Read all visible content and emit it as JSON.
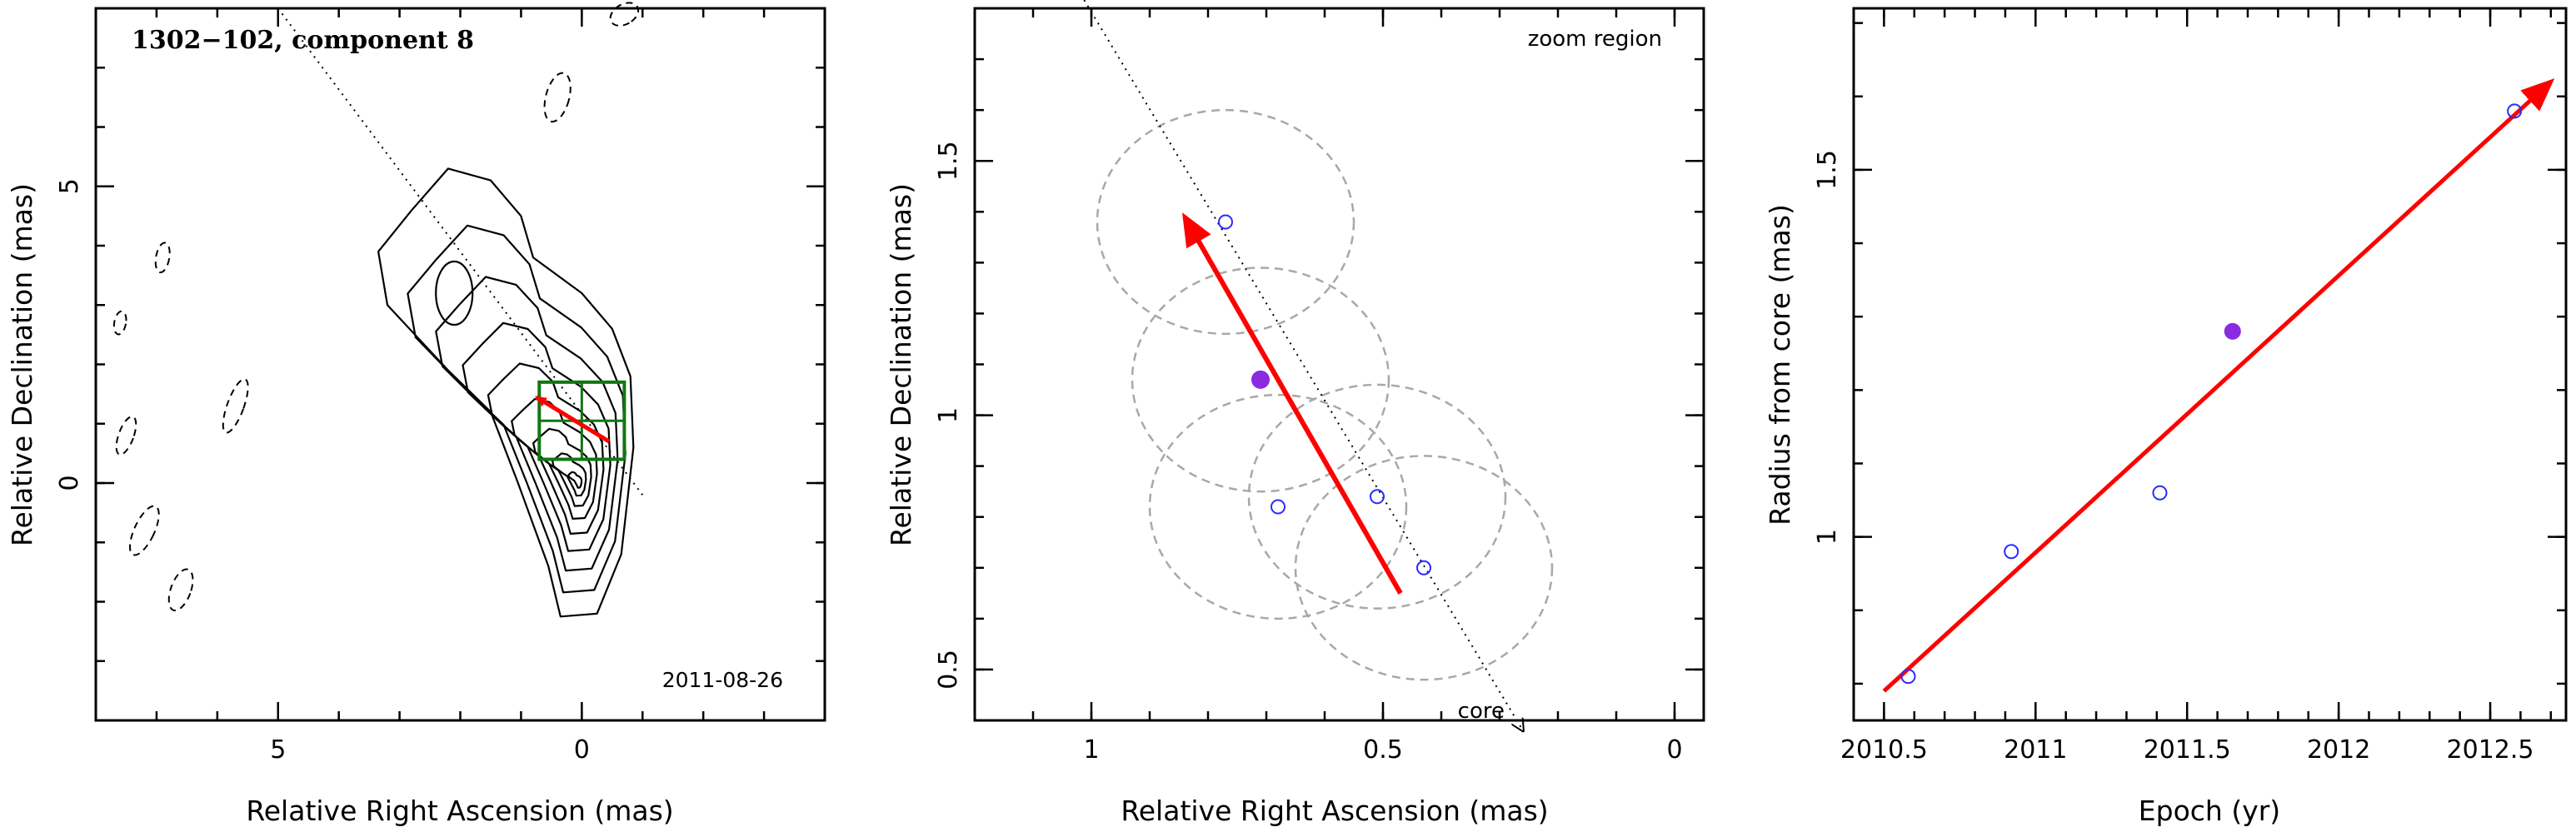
{
  "colors": {
    "velocity_arrow": "#ff0000",
    "open_markers": "#2a2aff",
    "filled_marker": "#8a2be2",
    "contours": "#000000",
    "zoom_box": "#117711",
    "uncertainty_circles": "#a8a8a8"
  },
  "chart_data": [
    {
      "type": "contour",
      "title": "1302−102, component 8",
      "xlabel": "Relative Right Ascension (mas)",
      "ylabel": "Relative Declination (mas)",
      "xlim": [
        8,
        -4
      ],
      "ylim": [
        -4,
        8
      ],
      "xticks": [
        5,
        0
      ],
      "yticks": [
        0,
        5
      ],
      "date_label": "2011-08-26",
      "contour_levels": 9,
      "zoom_box": {
        "x": [
          -0.7,
          0.7
        ],
        "y": [
          0.4,
          1.7
        ]
      },
      "velocity_arrow": {
        "from": [
          -0.45,
          0.7
        ],
        "to": [
          0.75,
          1.45
        ]
      },
      "jet_line": {
        "from": [
          5,
          8
        ],
        "to": [
          -1,
          -0.2
        ]
      }
    },
    {
      "type": "scatter",
      "xlabel": "Relative Right Ascension (mas)",
      "ylabel": "Relative Declination (mas)",
      "xlim": [
        1.2,
        -0.05
      ],
      "ylim": [
        0.4,
        1.8
      ],
      "xticks": [
        1,
        0.5,
        0
      ],
      "yticks": [
        0.5,
        1,
        1.5
      ],
      "annotations": [
        "zoom region",
        "core"
      ],
      "points": [
        {
          "x": 0.77,
          "y": 1.38,
          "filled": false
        },
        {
          "x": 0.71,
          "y": 1.07,
          "filled": true
        },
        {
          "x": 0.51,
          "y": 0.84,
          "filled": false
        },
        {
          "x": 0.68,
          "y": 0.82,
          "filled": false
        },
        {
          "x": 0.43,
          "y": 0.7,
          "filled": false
        }
      ],
      "velocity_arrow": {
        "from": [
          0.47,
          0.65
        ],
        "to": [
          0.84,
          1.39
        ]
      },
      "core_line": {
        "from": [
          1.03,
          1.85
        ],
        "to": [
          0.26,
          0.38
        ]
      }
    },
    {
      "type": "scatter",
      "xlabel": "Epoch (yr)",
      "ylabel": "Radius from core (mas)",
      "xlim": [
        2010.4,
        2012.75
      ],
      "ylim": [
        0.75,
        1.72
      ],
      "xticks": [
        2010.5,
        2011,
        2011.5,
        2012,
        2012.5
      ],
      "yticks": [
        1,
        1.5
      ],
      "points": [
        {
          "x": 2010.58,
          "y": 0.81,
          "filled": false
        },
        {
          "x": 2010.92,
          "y": 0.98,
          "filled": false
        },
        {
          "x": 2011.41,
          "y": 1.06,
          "filled": false
        },
        {
          "x": 2011.65,
          "y": 1.28,
          "filled": true
        },
        {
          "x": 2012.58,
          "y": 1.58,
          "filled": false
        }
      ],
      "fit_line": {
        "from": [
          2010.5,
          0.79
        ],
        "to": [
          2012.7,
          1.62
        ]
      }
    }
  ]
}
